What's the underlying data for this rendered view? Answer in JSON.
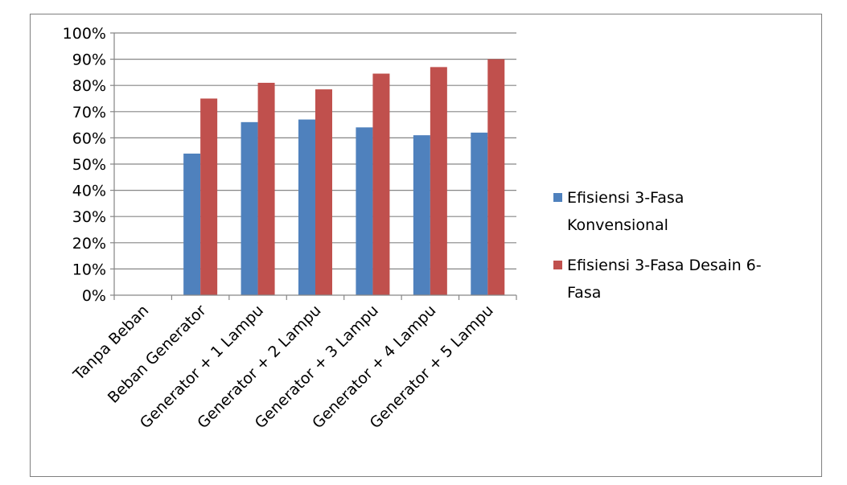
{
  "chart_data": {
    "type": "bar",
    "categories": [
      "Tanpa Beban",
      "Beban Generator",
      "Generator + 1 Lampu",
      "Generator + 2 Lampu",
      "Generator + 3 Lampu",
      "Generator + 4 Lampu",
      "Generator + 5 Lampu"
    ],
    "series": [
      {
        "name": "Efisiensi 3-Fasa Konvensional",
        "legend_lines": [
          "Efisiensi 3-Fasa",
          "Konvensional"
        ],
        "color": "#4f81bd",
        "values": [
          0,
          54,
          66,
          67,
          64,
          61,
          62
        ]
      },
      {
        "name": "Efisiensi 3-Fasa Desain 6-Fasa",
        "legend_lines": [
          "Efisiensi 3-Fasa Desain 6-",
          "Fasa"
        ],
        "color": "#c0504d",
        "values": [
          0,
          75,
          81,
          78.5,
          84.5,
          87,
          90
        ]
      }
    ],
    "ylim": [
      0,
      100
    ],
    "yticks": [
      "0%",
      "10%",
      "20%",
      "30%",
      "40%",
      "50%",
      "60%",
      "70%",
      "80%",
      "90%",
      "100%"
    ],
    "grid": true,
    "legend_position": "right",
    "title": "",
    "xlabel": "",
    "ylabel": ""
  }
}
